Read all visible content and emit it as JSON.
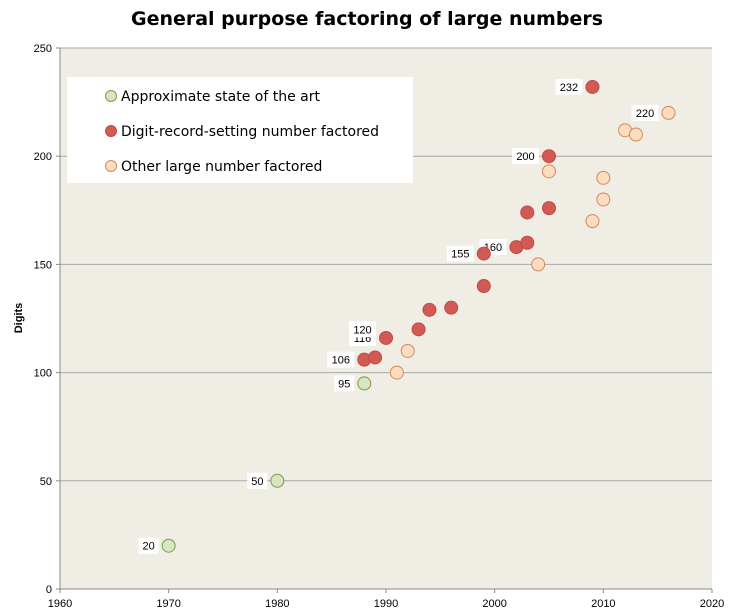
{
  "chart_data": {
    "type": "scatter",
    "title": "General purpose factoring of large numbers",
    "xlabel": "",
    "ylabel": "Digits",
    "xlim": [
      1960,
      2020
    ],
    "ylim": [
      0,
      250
    ],
    "x_ticks": [
      "1960",
      "1970",
      "1980",
      "1990",
      "2000",
      "2010",
      "2020"
    ],
    "y_ticks": [
      "0",
      "50",
      "100",
      "150",
      "200",
      "250"
    ],
    "grid": "horizontal",
    "legend_position": "top-left",
    "colors": {
      "plot_background": "#efede4",
      "gridline": "#a8a8a8"
    },
    "series": [
      {
        "name": "Approximate state of the art",
        "fill": "#d6e6bf",
        "stroke": "#7a9a4e",
        "points": [
          {
            "x": 1970,
            "y": 20
          },
          {
            "x": 1980,
            "y": 50
          },
          {
            "x": 1988,
            "y": 95
          }
        ]
      },
      {
        "name": "Digit-record-setting number factored",
        "fill": "#d15a55",
        "stroke": "#c04a46",
        "points": [
          {
            "x": 1988,
            "y": 106
          },
          {
            "x": 1989,
            "y": 107
          },
          {
            "x": 1990,
            "y": 116
          },
          {
            "x": 1993,
            "y": 120
          },
          {
            "x": 1994,
            "y": 129
          },
          {
            "x": 1996,
            "y": 130
          },
          {
            "x": 1999,
            "y": 140
          },
          {
            "x": 1999,
            "y": 155
          },
          {
            "x": 2002,
            "y": 158
          },
          {
            "x": 2003,
            "y": 160
          },
          {
            "x": 2003,
            "y": 174
          },
          {
            "x": 2005,
            "y": 176
          },
          {
            "x": 2005,
            "y": 200
          },
          {
            "x": 2009,
            "y": 232
          }
        ]
      },
      {
        "name": "Other large number factored",
        "fill": "#fddcc0",
        "stroke": "#d18a58",
        "points": [
          {
            "x": 1991,
            "y": 100
          },
          {
            "x": 1992,
            "y": 110
          },
          {
            "x": 2004,
            "y": 150
          },
          {
            "x": 2005,
            "y": 193
          },
          {
            "x": 2009,
            "y": 170
          },
          {
            "x": 2010,
            "y": 180
          },
          {
            "x": 2010,
            "y": 190
          },
          {
            "x": 2012,
            "y": 212
          },
          {
            "x": 2013,
            "y": 210
          },
          {
            "x": 2016,
            "y": 220
          }
        ]
      }
    ],
    "annotations": [
      {
        "text": "20",
        "x": 1970,
        "y": 20
      },
      {
        "text": "50",
        "x": 1980,
        "y": 50
      },
      {
        "text": "95",
        "x": 1988,
        "y": 95
      },
      {
        "text": "106",
        "x": 1988,
        "y": 106
      },
      {
        "text": "116",
        "x": 1990,
        "y": 116
      },
      {
        "text": "120",
        "x": 1990,
        "y": 120
      },
      {
        "text": "155",
        "x": 1999,
        "y": 155
      },
      {
        "text": "160",
        "x": 2002,
        "y": 158
      },
      {
        "text": "200",
        "x": 2005,
        "y": 200
      },
      {
        "text": "232",
        "x": 2009,
        "y": 232
      },
      {
        "text": "220",
        "x": 2016,
        "y": 220
      }
    ]
  }
}
